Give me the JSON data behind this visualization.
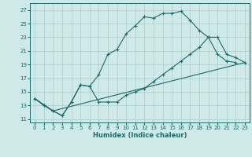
{
  "xlabel": "Humidex (Indice chaleur)",
  "bg_color": "#cfe8e8",
  "grid_color": "#aacccc",
  "line_color": "#1a6b6b",
  "marker": "+",
  "xlim": [
    -0.5,
    23.5
  ],
  "ylim": [
    10.5,
    28.0
  ],
  "xticks": [
    0,
    1,
    2,
    3,
    4,
    5,
    6,
    7,
    8,
    9,
    10,
    11,
    12,
    13,
    14,
    15,
    16,
    17,
    18,
    19,
    20,
    21,
    22,
    23
  ],
  "yticks": [
    11,
    13,
    15,
    17,
    19,
    21,
    23,
    25,
    27
  ],
  "line1_x": [
    0,
    1,
    2,
    3,
    4,
    5,
    6,
    7,
    8,
    9,
    10,
    11,
    12,
    13,
    14,
    15,
    16,
    17,
    18,
    19,
    20,
    21,
    22
  ],
  "line1_y": [
    14.0,
    13.0,
    12.2,
    11.5,
    13.5,
    16.0,
    15.8,
    17.5,
    20.5,
    21.2,
    23.5,
    24.7,
    26.0,
    25.8,
    26.5,
    26.5,
    26.8,
    25.5,
    24.0,
    23.0,
    20.5,
    19.5,
    19.3
  ],
  "line2_x": [
    0,
    1,
    2,
    3,
    4,
    5,
    6,
    7,
    8,
    9,
    10,
    11,
    12,
    13,
    14,
    15,
    16,
    17,
    18,
    19,
    20,
    21,
    22,
    23
  ],
  "line2_y": [
    14.0,
    13.0,
    12.2,
    11.5,
    13.5,
    16.0,
    15.8,
    13.5,
    13.5,
    13.5,
    14.5,
    15.0,
    15.5,
    16.5,
    17.5,
    18.5,
    19.5,
    20.5,
    21.5,
    23.0,
    23.0,
    20.5,
    20.0,
    19.3
  ],
  "line3_x": [
    0,
    2,
    23
  ],
  "line3_y": [
    14.0,
    12.2,
    19.3
  ]
}
